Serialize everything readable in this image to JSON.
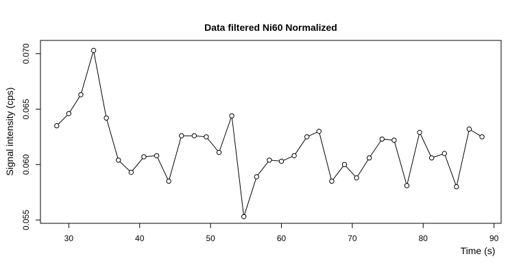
{
  "chart_data": {
    "type": "line",
    "title": "Data filtered Ni60 Normalized",
    "xlabel": "Time (s)",
    "ylabel": "Signal intensity (cps)",
    "xlim": [
      26.0,
      91.0
    ],
    "ylim": [
      0.0547,
      0.0712
    ],
    "x_ticks": [
      30,
      40,
      50,
      60,
      70,
      80,
      90
    ],
    "x_tick_labels": [
      "30",
      "40",
      "50",
      "60",
      "70",
      "80",
      "90"
    ],
    "y_ticks": [
      0.055,
      0.06,
      0.065,
      0.07
    ],
    "y_tick_labels": [
      "0.055",
      "0.060",
      "0.065",
      "0.070"
    ],
    "grid": false,
    "marker": "open-circle",
    "line_color": "#000000",
    "series": [
      {
        "x": [
          28.3,
          30.0,
          31.7,
          33.5,
          35.3,
          37.0,
          38.8,
          40.6,
          42.4,
          44.1,
          45.9,
          47.7,
          49.4,
          51.2,
          53.0,
          54.7,
          56.5,
          58.3,
          60.0,
          61.8,
          63.6,
          65.3,
          67.1,
          68.9,
          70.6,
          72.4,
          74.2,
          75.9,
          77.7,
          79.5,
          81.2,
          83.0,
          84.7,
          86.5,
          88.3
        ],
        "y": [
          0.0635,
          0.0646,
          0.0663,
          0.0703,
          0.0642,
          0.0604,
          0.0593,
          0.0607,
          0.0608,
          0.0585,
          0.0626,
          0.0626,
          0.0625,
          0.0611,
          0.0644,
          0.0553,
          0.0589,
          0.0604,
          0.0603,
          0.0608,
          0.0625,
          0.063,
          0.0585,
          0.06,
          0.0588,
          0.0606,
          0.0623,
          0.0622,
          0.0581,
          0.0629,
          0.0606,
          0.061,
          0.058,
          0.0632,
          0.0625
        ]
      }
    ]
  }
}
